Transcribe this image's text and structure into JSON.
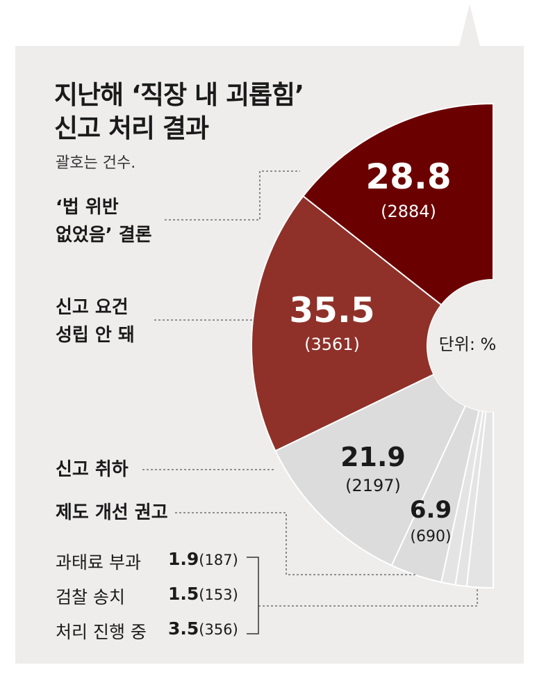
{
  "title_line1": "지난해 ‘직장 내 괴롭힘’",
  "title_line2": "신고 처리 결과",
  "subtitle": "괄호는 건수.",
  "unit_label": "단위: %",
  "colors": {
    "dark": "#6b0000",
    "medium": "#8f3129",
    "light": "#dcdcdc",
    "lighter": "#e4e4e4",
    "background": "#efedec"
  },
  "chart_data": {
    "type": "pie",
    "style": "donut",
    "unit": "%",
    "title": "지난해 ‘직장 내 괴롭힘’ 신고 처리 결과",
    "slices": [
      {
        "category": "‘법 위반 없었음’ 결론",
        "label_line1": "‘법 위반",
        "label_line2": "없었음’ 결론",
        "value": 28.8,
        "value_text": "28.8",
        "count": 2884,
        "count_text": "(2884)"
      },
      {
        "category": "신고 요건 성립 안 돼",
        "label_line1": "신고 요건",
        "label_line2": "성립 안 돼",
        "value": 35.5,
        "value_text": "35.5",
        "count": 3561,
        "count_text": "(3561)"
      },
      {
        "category": "신고 취하",
        "value": 21.9,
        "value_text": "21.9",
        "count": 2197,
        "count_text": "(2197)"
      },
      {
        "category": "제도 개선 권고",
        "value": 6.9,
        "value_text": "6.9",
        "count": 690,
        "count_text": "(690)"
      },
      {
        "category": "과태료 부과",
        "value": 1.9,
        "value_text": "1.9",
        "count": 187,
        "count_text": "(187)"
      },
      {
        "category": "검찰 송치",
        "value": 1.5,
        "value_text": "1.5",
        "count": 153,
        "count_text": "(153)"
      },
      {
        "category": "처리 진행 중",
        "value": 3.5,
        "value_text": "3.5",
        "count": 356,
        "count_text": "(356)"
      }
    ]
  }
}
